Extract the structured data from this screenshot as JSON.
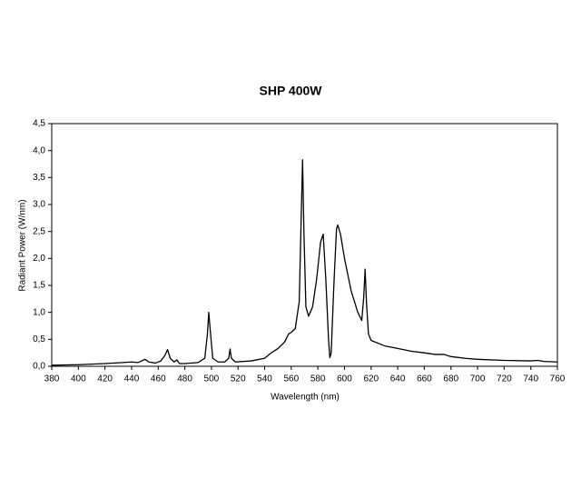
{
  "chart_data": {
    "type": "line",
    "title": "SHP 400W",
    "x_label": "Wavelength (nm)",
    "y_label": "Radiant Power (W/nm)",
    "x": [
      380,
      400,
      420,
      440,
      445,
      450,
      453,
      458,
      462,
      465,
      467,
      469,
      472,
      474,
      476,
      480,
      490,
      495,
      497,
      498,
      499,
      501,
      505,
      510,
      513,
      514,
      515,
      518,
      530,
      540,
      545,
      550,
      555,
      558,
      560,
      563,
      566,
      567.5,
      568.5,
      569.5,
      571,
      573,
      576,
      579,
      582,
      584,
      586,
      588,
      589,
      590,
      592,
      594,
      595,
      597,
      600,
      605,
      610,
      613,
      614.5,
      615.5,
      616.5,
      618,
      620,
      630,
      640,
      650,
      660,
      668,
      675,
      680,
      690,
      700,
      720,
      740,
      745,
      750,
      760
    ],
    "series": [
      {
        "name": "SHP 400W",
        "color": "#000000",
        "values": [
          0.02,
          0.03,
          0.05,
          0.08,
          0.07,
          0.13,
          0.08,
          0.06,
          0.1,
          0.2,
          0.31,
          0.15,
          0.08,
          0.12,
          0.05,
          0.05,
          0.07,
          0.15,
          0.6,
          1.0,
          0.7,
          0.15,
          0.08,
          0.08,
          0.15,
          0.32,
          0.15,
          0.08,
          0.1,
          0.15,
          0.25,
          0.33,
          0.45,
          0.6,
          0.63,
          0.7,
          1.2,
          2.8,
          3.83,
          2.5,
          1.1,
          0.93,
          1.1,
          1.6,
          2.3,
          2.45,
          1.6,
          0.5,
          0.16,
          0.25,
          1.5,
          2.55,
          2.62,
          2.45,
          2.0,
          1.4,
          1.0,
          0.85,
          1.3,
          1.8,
          1.2,
          0.6,
          0.48,
          0.38,
          0.33,
          0.28,
          0.25,
          0.22,
          0.22,
          0.18,
          0.15,
          0.13,
          0.11,
          0.1,
          0.11,
          0.09,
          0.08
        ]
      }
    ],
    "xlim": [
      380,
      760
    ],
    "xticks": [
      380,
      400,
      420,
      440,
      460,
      480,
      500,
      520,
      540,
      560,
      580,
      600,
      620,
      640,
      660,
      680,
      700,
      720,
      740,
      760
    ],
    "ylim": [
      0,
      4.5
    ],
    "yticks": [
      {
        "value": 0,
        "label": "0,0"
      },
      {
        "value": 0.5,
        "label": "0,5"
      },
      {
        "value": 1,
        "label": "1,0"
      },
      {
        "value": 1.5,
        "label": "1,5"
      },
      {
        "value": 2,
        "label": "2,0"
      },
      {
        "value": 2.5,
        "label": "2,5"
      },
      {
        "value": 3,
        "label": "3,0"
      },
      {
        "value": 3.5,
        "label": "3,5"
      },
      {
        "value": 4,
        "label": "4,0"
      },
      {
        "value": 4.5,
        "label": "4,5"
      }
    ],
    "grid": false
  }
}
